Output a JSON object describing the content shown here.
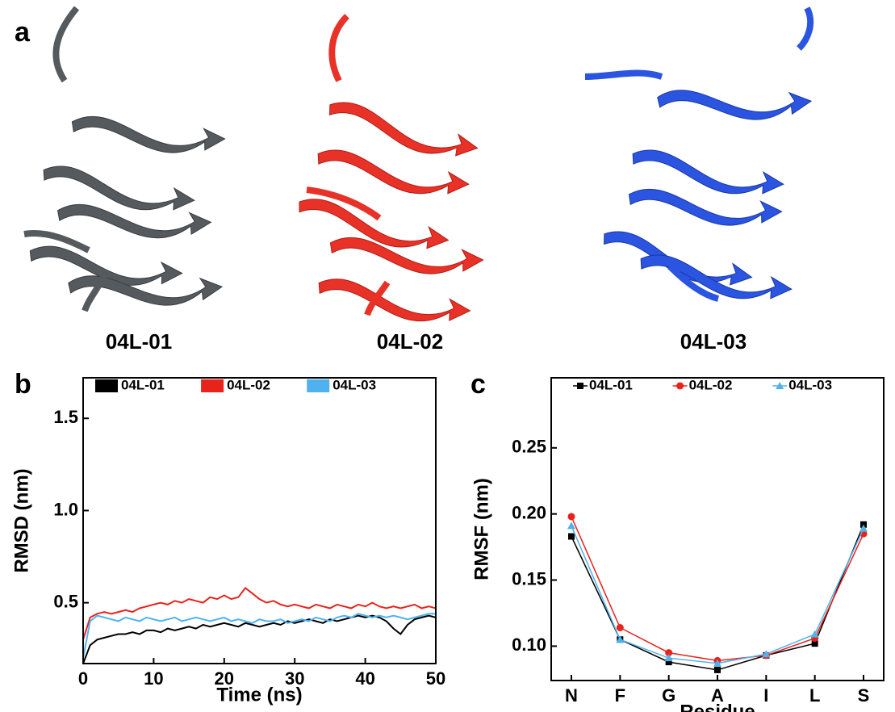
{
  "panels": {
    "a": "a",
    "b": "b",
    "c": "c"
  },
  "structures": [
    "04L-01",
    "04L-02",
    "04L-03"
  ],
  "chart_data": [
    {
      "type": "line",
      "x_label": "Time (ns)",
      "y_label": "RMSD (nm)",
      "x": [
        0,
        1,
        2,
        3,
        4,
        5,
        6,
        7,
        8,
        9,
        10,
        11,
        12,
        13,
        14,
        15,
        16,
        17,
        18,
        19,
        20,
        21,
        22,
        23,
        24,
        25,
        26,
        27,
        28,
        29,
        30,
        31,
        32,
        33,
        34,
        35,
        36,
        37,
        38,
        39,
        40,
        41,
        42,
        43,
        44,
        45,
        46,
        47,
        48,
        49,
        50
      ],
      "xlim": [
        0,
        50
      ],
      "xticks": [
        0,
        10,
        20,
        30,
        40,
        50
      ],
      "ylim": [
        0.17,
        1.72
      ],
      "yticks": [
        {
          "value": 0.5,
          "label": "0.5"
        },
        {
          "value": 1.0,
          "label": "1.0"
        },
        {
          "value": 1.5,
          "label": "1.5"
        }
      ],
      "legend": "top",
      "series": [
        {
          "name": "04L-01",
          "color": "#000000",
          "values": [
            0.17,
            0.27,
            0.3,
            0.31,
            0.32,
            0.33,
            0.33,
            0.34,
            0.33,
            0.35,
            0.35,
            0.34,
            0.36,
            0.35,
            0.36,
            0.37,
            0.36,
            0.38,
            0.37,
            0.38,
            0.39,
            0.38,
            0.37,
            0.39,
            0.38,
            0.37,
            0.38,
            0.39,
            0.38,
            0.4,
            0.39,
            0.4,
            0.41,
            0.4,
            0.39,
            0.41,
            0.4,
            0.41,
            0.42,
            0.43,
            0.42,
            0.43,
            0.42,
            0.4,
            0.36,
            0.33,
            0.38,
            0.41,
            0.42,
            0.43,
            0.42
          ]
        },
        {
          "name": "04L-02",
          "color": "#e8231b",
          "values": [
            0.3,
            0.42,
            0.44,
            0.45,
            0.44,
            0.45,
            0.46,
            0.45,
            0.47,
            0.48,
            0.49,
            0.5,
            0.49,
            0.51,
            0.5,
            0.52,
            0.51,
            0.5,
            0.53,
            0.52,
            0.54,
            0.52,
            0.53,
            0.58,
            0.55,
            0.52,
            0.5,
            0.51,
            0.49,
            0.48,
            0.49,
            0.48,
            0.47,
            0.49,
            0.48,
            0.47,
            0.49,
            0.48,
            0.47,
            0.49,
            0.48,
            0.5,
            0.48,
            0.47,
            0.48,
            0.47,
            0.48,
            0.49,
            0.47,
            0.48,
            0.47
          ]
        },
        {
          "name": "04L-03",
          "color": "#4fb2ee",
          "values": [
            0.2,
            0.4,
            0.43,
            0.42,
            0.41,
            0.4,
            0.42,
            0.41,
            0.4,
            0.42,
            0.41,
            0.4,
            0.41,
            0.42,
            0.4,
            0.41,
            0.42,
            0.41,
            0.4,
            0.41,
            0.42,
            0.4,
            0.41,
            0.4,
            0.39,
            0.41,
            0.4,
            0.4,
            0.41,
            0.39,
            0.4,
            0.41,
            0.4,
            0.42,
            0.41,
            0.4,
            0.42,
            0.43,
            0.42,
            0.44,
            0.43,
            0.42,
            0.43,
            0.42,
            0.43,
            0.42,
            0.41,
            0.42,
            0.43,
            0.44,
            0.44
          ]
        }
      ]
    },
    {
      "type": "line",
      "x_label": "Residue",
      "y_label": "RMSF (nm)",
      "categories": [
        "N",
        "F",
        "G",
        "A",
        "I",
        "L",
        "S"
      ],
      "ylim": [
        0.074,
        0.303
      ],
      "yticks": [
        {
          "value": 0.1,
          "label": "0.10"
        },
        {
          "value": 0.15,
          "label": "0.15"
        },
        {
          "value": 0.2,
          "label": "0.20"
        },
        {
          "value": 0.25,
          "label": "0.25"
        }
      ],
      "legend": "top",
      "series": [
        {
          "name": "04L-01",
          "color": "#000000",
          "marker": "square",
          "values": [
            0.183,
            0.105,
            0.088,
            0.082,
            0.093,
            0.102,
            0.192
          ]
        },
        {
          "name": "04L-02",
          "color": "#e8231b",
          "marker": "circle",
          "values": [
            0.198,
            0.114,
            0.095,
            0.089,
            0.093,
            0.106,
            0.185
          ]
        },
        {
          "name": "04L-03",
          "color": "#4fb2ee",
          "marker": "triangle",
          "values": [
            0.191,
            0.105,
            0.091,
            0.087,
            0.094,
            0.109,
            0.189
          ]
        }
      ]
    }
  ]
}
